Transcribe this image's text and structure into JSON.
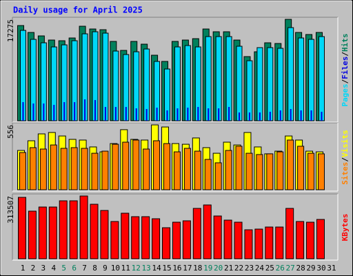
{
  "title": "Daily usage for April 2025",
  "separator": "/",
  "chart_data": [
    {
      "type": "bar",
      "ylim": [
        0,
        17275
      ],
      "yticks": [
        17275
      ],
      "series": [
        {
          "name": "Pages",
          "color": "#00d8f8",
          "values": [
            15393,
            13865,
            13278,
            12573,
            12925,
            13630,
            14805,
            15158,
            14923,
            11868,
            11280,
            11750,
            12220,
            10105,
            8813,
            12573,
            12808,
            12573,
            14335,
            14335,
            14335,
            12690,
            10223,
            12455,
            12455,
            12338,
            15863,
            14100,
            13865,
            14335,
            null
          ]
        },
        {
          "name": "Files",
          "color": "#0000e0",
          "values": [
            3173,
            2938,
            2938,
            2703,
            3173,
            3173,
            3643,
            3525,
            2350,
            2350,
            2350,
            2115,
            1998,
            2233,
            1763,
            2115,
            2233,
            2350,
            2115,
            2115,
            2350,
            1410,
            1410,
            1410,
            1528,
            1763,
            1998,
            1763,
            1763,
            1528,
            null
          ]
        },
        {
          "name": "Hits",
          "color": "#00805c",
          "values": [
            16215,
            15040,
            14453,
            13748,
            13630,
            14100,
            16098,
            15628,
            15510,
            13513,
            11985,
            13513,
            13043,
            11163,
            10105,
            13513,
            13748,
            13983,
            15628,
            15158,
            15158,
            13748,
            10928,
            11750,
            13278,
            13160,
            17275,
            15040,
            14688,
            15040,
            null
          ]
        }
      ]
    },
    {
      "type": "bar",
      "ylim": [
        0,
        556
      ],
      "yticks": [
        556
      ],
      "series": [
        {
          "name": "Sites",
          "color": "#ff8000",
          "values": [
            319,
            361,
            349,
            384,
            355,
            361,
            355,
            313,
            331,
            390,
            408,
            426,
            349,
            420,
            396,
            325,
            355,
            331,
            260,
            231,
            337,
            373,
            313,
            302,
            308,
            325,
            426,
            373,
            313,
            308,
            null
          ]
        },
        {
          "name": "Visits",
          "color": "#ffff00",
          "values": [
            337,
            420,
            479,
            491,
            461,
            432,
            426,
            367,
            325,
            396,
            515,
            432,
            426,
            556,
            538,
            396,
            390,
            444,
            361,
            313,
            408,
            384,
            491,
            367,
            308,
            331,
            461,
            426,
            331,
            325,
            null
          ]
        }
      ]
    },
    {
      "type": "bar",
      "ylim": [
        0,
        313507
      ],
      "yticks": [
        313507
      ],
      "categories": [
        "1",
        "2",
        "3",
        "4",
        "5",
        "6",
        "7",
        "8",
        "9",
        "10",
        "11",
        "12",
        "13",
        "14",
        "15",
        "16",
        "17",
        "18",
        "19",
        "20",
        "21",
        "22",
        "23",
        "24",
        "25",
        "26",
        "27",
        "28",
        "29",
        "30",
        "31"
      ],
      "category_colors": [
        "#000000",
        "#000000",
        "#000000",
        "#000000",
        "#00805c",
        "#00805c",
        "#000000",
        "#000000",
        "#000000",
        "#000000",
        "#000000",
        "#00805c",
        "#00805c",
        "#000000",
        "#000000",
        "#000000",
        "#000000",
        "#000000",
        "#00805c",
        "#00805c",
        "#000000",
        "#000000",
        "#000000",
        "#000000",
        "#000000",
        "#00805c",
        "#00805c",
        "#000000",
        "#000000",
        "#000000",
        "#000000"
      ],
      "series": [
        {
          "name": "KBytes",
          "color": "#ff0000",
          "values": [
            306605,
            237705,
            258375,
            258375,
            289380,
            289380,
            313507,
            272155,
            241150,
            186030,
            227370,
            210145,
            210145,
            199810,
            155025,
            182585,
            189475,
            251485,
            268710,
            213590,
            192920,
            182585,
            144690,
            148135,
            158470,
            158470,
            251485,
            186030,
            182585,
            196365,
            null
          ]
        }
      ]
    }
  ]
}
